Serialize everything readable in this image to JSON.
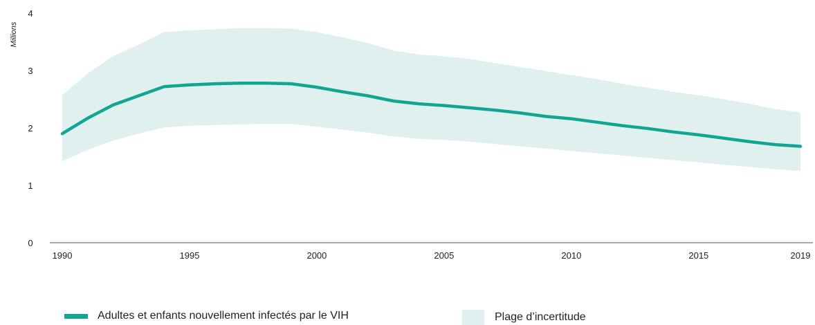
{
  "chart_data": {
    "type": "line",
    "ylabel": "Millions",
    "xlabel": "",
    "ylim": [
      0,
      4
    ],
    "xlim": [
      1990,
      2019
    ],
    "yticks": [
      "0",
      "1",
      "2",
      "3",
      "4"
    ],
    "xticks": [
      "1990",
      "1995",
      "2000",
      "2005",
      "2010",
      "2015",
      "2019"
    ],
    "x": [
      1990,
      1991,
      1992,
      1993,
      1994,
      1995,
      1996,
      1997,
      1998,
      1999,
      2000,
      2001,
      2002,
      2003,
      2004,
      2005,
      2006,
      2007,
      2008,
      2009,
      2010,
      2011,
      2012,
      2013,
      2014,
      2015,
      2016,
      2017,
      2018,
      2019
    ],
    "series": [
      {
        "name": "Adultes et enfants nouvellement infectés par le VIH",
        "values": [
          1.9,
          2.17,
          2.4,
          2.56,
          2.72,
          2.75,
          2.77,
          2.78,
          2.78,
          2.77,
          2.71,
          2.63,
          2.56,
          2.47,
          2.42,
          2.39,
          2.35,
          2.31,
          2.26,
          2.2,
          2.16,
          2.1,
          2.04,
          1.99,
          1.93,
          1.88,
          1.82,
          1.76,
          1.71,
          1.68
        ],
        "color": "#12a593"
      }
    ],
    "band": {
      "name": "Plage d’incertitude",
      "upper": [
        2.57,
        2.95,
        3.25,
        3.45,
        3.67,
        3.7,
        3.72,
        3.74,
        3.74,
        3.73,
        3.67,
        3.58,
        3.48,
        3.35,
        3.28,
        3.25,
        3.2,
        3.13,
        3.06,
        2.99,
        2.92,
        2.85,
        2.77,
        2.7,
        2.63,
        2.57,
        2.5,
        2.42,
        2.33,
        2.27
      ],
      "lower": [
        1.42,
        1.62,
        1.78,
        1.9,
        2.01,
        2.04,
        2.05,
        2.06,
        2.07,
        2.07,
        2.02,
        1.97,
        1.92,
        1.85,
        1.81,
        1.79,
        1.76,
        1.72,
        1.68,
        1.64,
        1.6,
        1.56,
        1.52,
        1.48,
        1.44,
        1.4,
        1.36,
        1.32,
        1.28,
        1.25
      ],
      "color": "#dff0ef"
    },
    "grid": false,
    "legend_position": "bottom"
  },
  "legend": {
    "line_label": "Adultes et enfants nouvellement infectés par le VIH",
    "band_label": "Plage d’incertitude"
  }
}
